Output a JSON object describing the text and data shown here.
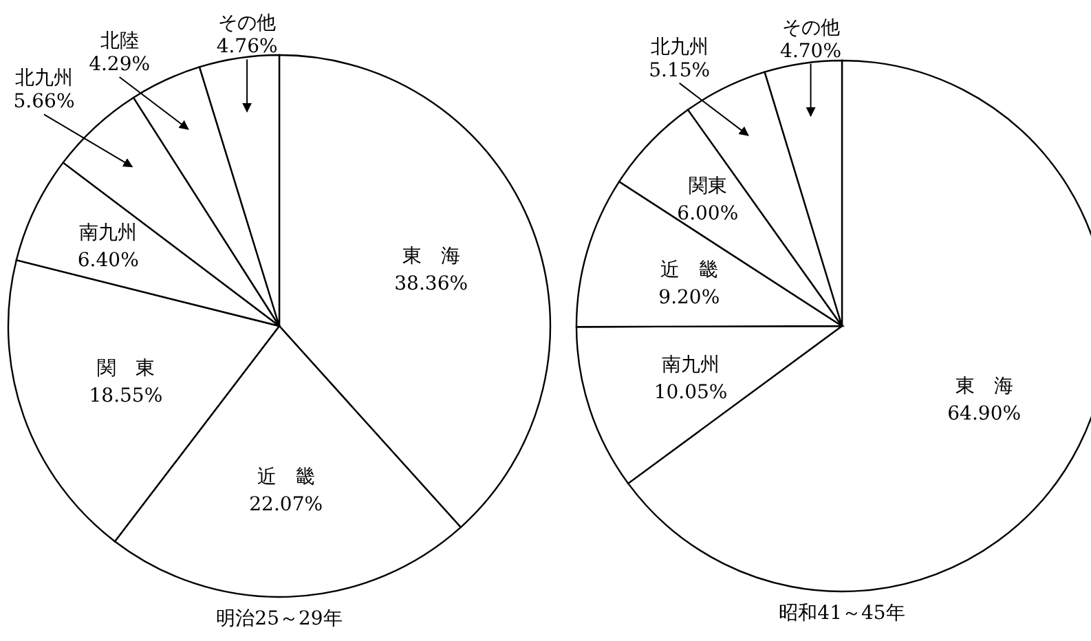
{
  "chart_data": [
    {
      "type": "pie",
      "title": "明治25～29年",
      "categories": [
        "東　海",
        "近　畿",
        "関　東",
        "南九州",
        "北九州",
        "北陸",
        "その他"
      ],
      "values": [
        38.36,
        22.07,
        18.55,
        6.4,
        5.66,
        4.29,
        4.76
      ],
      "value_labels": [
        "38.36%",
        "22.07%",
        "18.55%",
        "6.40%",
        "5.66%",
        "4.29%",
        "4.76%"
      ],
      "colors": [
        "#ffffff",
        "#ffffff",
        "#ffffff",
        "#ffffff",
        "#ffffff",
        "#ffffff",
        "#ffffff"
      ]
    },
    {
      "type": "pie",
      "title": "昭和41～45年",
      "categories": [
        "東　海",
        "南九州",
        "近　畿",
        "関東",
        "北九州",
        "その他"
      ],
      "values": [
        64.9,
        10.05,
        9.2,
        6.0,
        5.15,
        4.7
      ],
      "value_labels": [
        "64.90%",
        "10.05%",
        "9.20%",
        "6.00%",
        "5.15%",
        "4.70%"
      ],
      "colors": [
        "#ffffff",
        "#ffffff",
        "#ffffff",
        "#ffffff",
        "#ffffff",
        "#ffffff"
      ]
    }
  ]
}
